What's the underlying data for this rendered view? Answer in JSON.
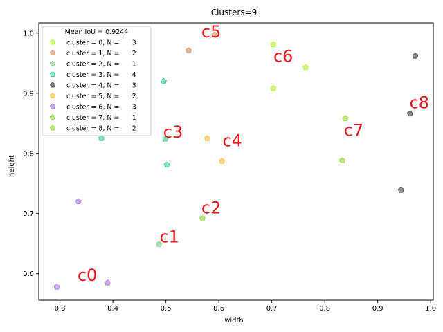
{
  "chart_data": {
    "type": "scatter",
    "title": "Clusters=9",
    "xlabel": "width",
    "ylabel": "height",
    "xlim": [
      0.26,
      1.005
    ],
    "ylim": [
      0.556,
      1.017
    ],
    "xticks": [
      0.3,
      0.4,
      0.5,
      0.6,
      0.7,
      0.8,
      0.9,
      1.0
    ],
    "xtick_labels": [
      "0.3",
      "0.4",
      "0.5",
      "0.6",
      "0.7",
      "0.8",
      "0.9",
      "1.0"
    ],
    "yticks": [
      0.6,
      0.7,
      0.8,
      0.9,
      1.0
    ],
    "ytick_labels": [
      "0.6",
      "0.7",
      "0.8",
      "0.9",
      "1.0"
    ],
    "legend": {
      "title": "Mean IoU = 0.9244",
      "placement": "top-left"
    },
    "series": [
      {
        "name": "cluster = 0, N =      3",
        "color": "#b2f02b",
        "points": [
          [
            0.703,
            0.981
          ],
          [
            0.703,
            0.908
          ],
          [
            0.764,
            0.943
          ]
        ]
      },
      {
        "name": "cluster = 1, N =      2",
        "color": "#d2875a",
        "points": [
          [
            0.543,
            0.971
          ],
          [
            0.592,
            0.997
          ]
        ]
      },
      {
        "name": "cluster = 2, N =      1",
        "color": "#7fc98a",
        "points": [
          [
            0.487,
            0.649
          ]
        ]
      },
      {
        "name": "cluster = 3, N =      4",
        "color": "#30cf8a",
        "points": [
          [
            0.378,
            0.825
          ],
          [
            0.496,
            0.92
          ],
          [
            0.499,
            0.824
          ],
          [
            0.502,
            0.781
          ]
        ]
      },
      {
        "name": "cluster = 4, N =      3",
        "color": "#3c3c3c",
        "points": [
          [
            0.944,
            0.739
          ],
          [
            0.961,
            0.866
          ],
          [
            0.971,
            0.962
          ]
        ]
      },
      {
        "name": "cluster = 5, N =      2",
        "color": "#f5bf3a",
        "points": [
          [
            0.578,
            0.825
          ],
          [
            0.606,
            0.787
          ]
        ]
      },
      {
        "name": "cluster = 6, N =      3",
        "color": "#a478d8",
        "points": [
          [
            0.294,
            0.578
          ],
          [
            0.335,
            0.72
          ],
          [
            0.39,
            0.585
          ]
        ]
      },
      {
        "name": "cluster = 7, N =      1",
        "color": "#8fce3c",
        "points": [
          [
            0.569,
            0.692
          ]
        ]
      },
      {
        "name": "cluster = 8, N =      2",
        "color": "#96d232",
        "points": [
          [
            0.833,
            0.788
          ],
          [
            0.839,
            0.858
          ]
        ]
      }
    ],
    "annotations": [
      {
        "text": "c0",
        "x": 0.333,
        "y": 0.588
      },
      {
        "text": "c1",
        "x": 0.488,
        "y": 0.652
      },
      {
        "text": "c2",
        "x": 0.567,
        "y": 0.7
      },
      {
        "text": "c3",
        "x": 0.495,
        "y": 0.826
      },
      {
        "text": "c4",
        "x": 0.607,
        "y": 0.812
      },
      {
        "text": "c5",
        "x": 0.567,
        "y": 0.993
      },
      {
        "text": "c6",
        "x": 0.703,
        "y": 0.952
      },
      {
        "text": "c7",
        "x": 0.836,
        "y": 0.829
      },
      {
        "text": "c8",
        "x": 0.96,
        "y": 0.875
      }
    ]
  }
}
